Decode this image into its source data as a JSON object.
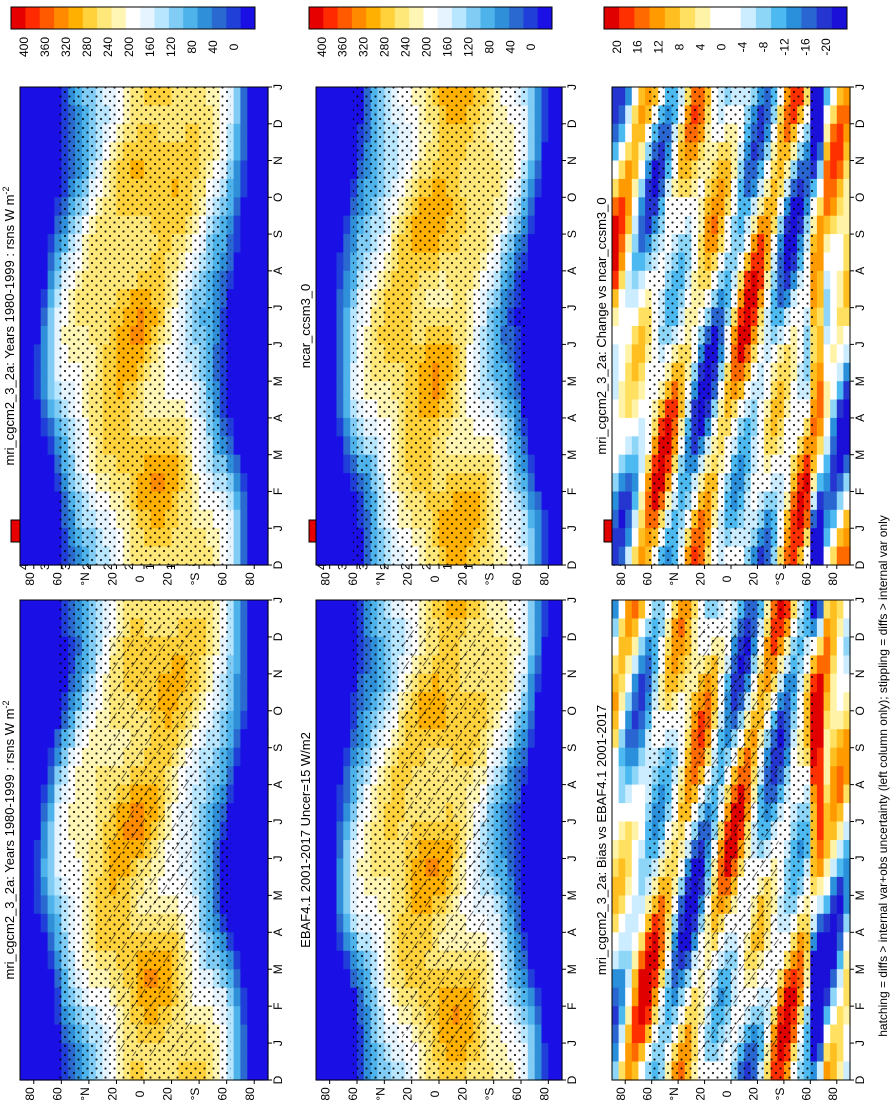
{
  "figure": {
    "footer_note": "hatching = diffs > internal var+obs uncertainty (left column only); stippling = diffs > internal var only"
  },
  "colors": {
    "abs_scale": [
      "#e60000",
      "#ff2a00",
      "#ff5a00",
      "#ff8a00",
      "#ffb000",
      "#ffd23c",
      "#ffe87a",
      "#fff5b4",
      "#ffffff",
      "#e6f4ff",
      "#b8e6ff",
      "#80ccf5",
      "#4db3ea",
      "#2f8fd8",
      "#2a6ad0",
      "#1f3fd8",
      "#1a10e6"
    ],
    "diff_scale": [
      "#e00000",
      "#ff3000",
      "#ff6a00",
      "#ff9a00",
      "#ffbf20",
      "#ffe060",
      "#fff3a8",
      "#ffffff",
      "#ffffff",
      "#ccecff",
      "#8ed6f8",
      "#4cbaf0",
      "#2b90dc",
      "#2a66d2",
      "#2536d0",
      "#1a10d8"
    ]
  },
  "chart_data": [
    {
      "type": "heatmap",
      "id": "p1",
      "title": "mri_cgcm2_3_2a: Years 1980-1999 : rsns W m",
      "title_sup": "-2",
      "x_ticks": [
        "D",
        "J",
        "F",
        "M",
        "A",
        "M",
        "J",
        "J",
        "A",
        "S",
        "O",
        "N",
        "D",
        "J"
      ],
      "y_ticks": [
        "80",
        "60",
        "°N",
        "20",
        "0",
        "20",
        "°S",
        "60",
        "80"
      ],
      "y_range": [
        -90,
        90
      ],
      "colorbar_ticks": [
        "400",
        "360",
        "320",
        "280",
        "240",
        "200",
        "160",
        "120",
        "80",
        "40",
        "0"
      ],
      "colorbar_range": [
        0,
        420
      ],
      "overlay": "hatching+stippling"
    },
    {
      "type": "heatmap",
      "id": "p2",
      "title": "mri_cgcm2_3_2a: Years 1980-1999 : rsns W m",
      "title_sup": "-2",
      "x_ticks": [
        "D",
        "J",
        "F",
        "M",
        "A",
        "M",
        "J",
        "J",
        "A",
        "S",
        "O",
        "N",
        "D",
        "J"
      ],
      "y_ticks": [
        "80",
        "60",
        "°N",
        "20",
        "0",
        "20",
        "°S",
        "60",
        "80"
      ],
      "y_range": [
        -90,
        90
      ],
      "colorbar_ticks": [
        "400",
        "360",
        "320",
        "280",
        "240",
        "200",
        "160",
        "120",
        "80",
        "40",
        "0"
      ],
      "colorbar_range": [
        0,
        420
      ],
      "overlay": "stippling"
    },
    {
      "type": "heatmap",
      "id": "p3",
      "title": "EBAF4.1 2001-2017 Uncer=15 W/m2",
      "x_ticks": [
        "D",
        "J",
        "F",
        "M",
        "A",
        "M",
        "J",
        "J",
        "A",
        "S",
        "O",
        "N",
        "D",
        "J"
      ],
      "y_ticks": [
        "80",
        "60",
        "°N",
        "20",
        "0",
        "20",
        "°S",
        "60",
        "80"
      ],
      "y_range": [
        -90,
        90
      ],
      "colorbar_ticks": [
        "400",
        "360",
        "320",
        "280",
        "240",
        "200",
        "160",
        "120",
        "80",
        "40",
        "0"
      ],
      "colorbar_range": [
        0,
        420
      ],
      "overlay": "hatching+stippling"
    },
    {
      "type": "heatmap",
      "id": "p4",
      "title": "ncar_ccsm3_0",
      "x_ticks": [
        "D",
        "J",
        "F",
        "M",
        "A",
        "M",
        "J",
        "J",
        "A",
        "S",
        "O",
        "N",
        "D",
        "J"
      ],
      "y_ticks": [
        "80",
        "60",
        "°N",
        "20",
        "0",
        "20",
        "°S",
        "60",
        "80"
      ],
      "y_range": [
        -90,
        90
      ],
      "colorbar_ticks": [
        "400",
        "360",
        "320",
        "280",
        "240",
        "200",
        "160",
        "120",
        "80",
        "40",
        "0"
      ],
      "colorbar_range": [
        0,
        420
      ],
      "overlay": "stippling"
    },
    {
      "type": "heatmap",
      "id": "p5",
      "title": "mri_cgcm2_3_2a: Bias vs EBAF4.1 2001-2017",
      "x_ticks": [
        "D",
        "J",
        "F",
        "M",
        "A",
        "M",
        "J",
        "J",
        "A",
        "S",
        "O",
        "N",
        "D",
        "J"
      ],
      "y_ticks": [
        "80",
        "60",
        "°N",
        "20",
        "0",
        "20",
        "°S",
        "60",
        "80"
      ],
      "y_range": [
        -90,
        90
      ],
      "colorbar_ticks": [
        "20",
        "16",
        "12",
        "8",
        "4",
        "0",
        "-4",
        "-8",
        "-12",
        "-16",
        "-20"
      ],
      "colorbar_range": [
        -22,
        22
      ],
      "overlay": "hatching+stippling"
    },
    {
      "type": "heatmap",
      "id": "p6",
      "title": "mri_cgcm2_3_2a: Change vs ncar_ccsm3_0",
      "x_ticks": [
        "D",
        "J",
        "F",
        "M",
        "A",
        "M",
        "J",
        "J",
        "A",
        "S",
        "O",
        "N",
        "D",
        "J"
      ],
      "y_ticks": [
        "80",
        "60",
        "°N",
        "20",
        "0",
        "20",
        "°S",
        "60",
        "80"
      ],
      "y_range": [
        -90,
        90
      ],
      "colorbar_ticks": [
        "20",
        "16",
        "12",
        "8",
        "4",
        "0",
        "-4",
        "-8",
        "-12",
        "-16",
        "-20"
      ],
      "colorbar_range": [
        -22,
        22
      ],
      "overlay": "stippling"
    }
  ]
}
